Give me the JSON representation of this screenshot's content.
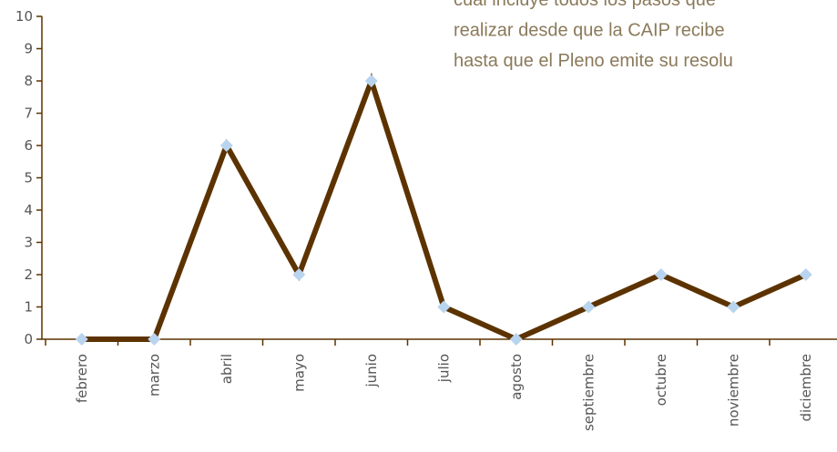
{
  "chart_data": {
    "type": "line",
    "annotations": [
      "cual incluye todos los pasos que",
      "realizar desde que la CAIP recibe",
      "hasta que el Pleno emite su resolu"
    ],
    "categories": [
      "febrero",
      "marzo",
      "abril",
      "mayo",
      "junio",
      "julio",
      "agosto",
      "septiembre",
      "octubre",
      "noviembre",
      "diciembre"
    ],
    "series": [
      {
        "color": "#5c3300",
        "marker_color": "#b8d4ee",
        "values": [
          0,
          0,
          6,
          2,
          8,
          1,
          0,
          1,
          2,
          1,
          2
        ]
      }
    ],
    "ylim": [
      0,
      10
    ],
    "yticks": [
      0,
      1,
      2,
      3,
      4,
      5,
      6,
      7,
      8,
      9,
      10
    ],
    "grid": false
  }
}
